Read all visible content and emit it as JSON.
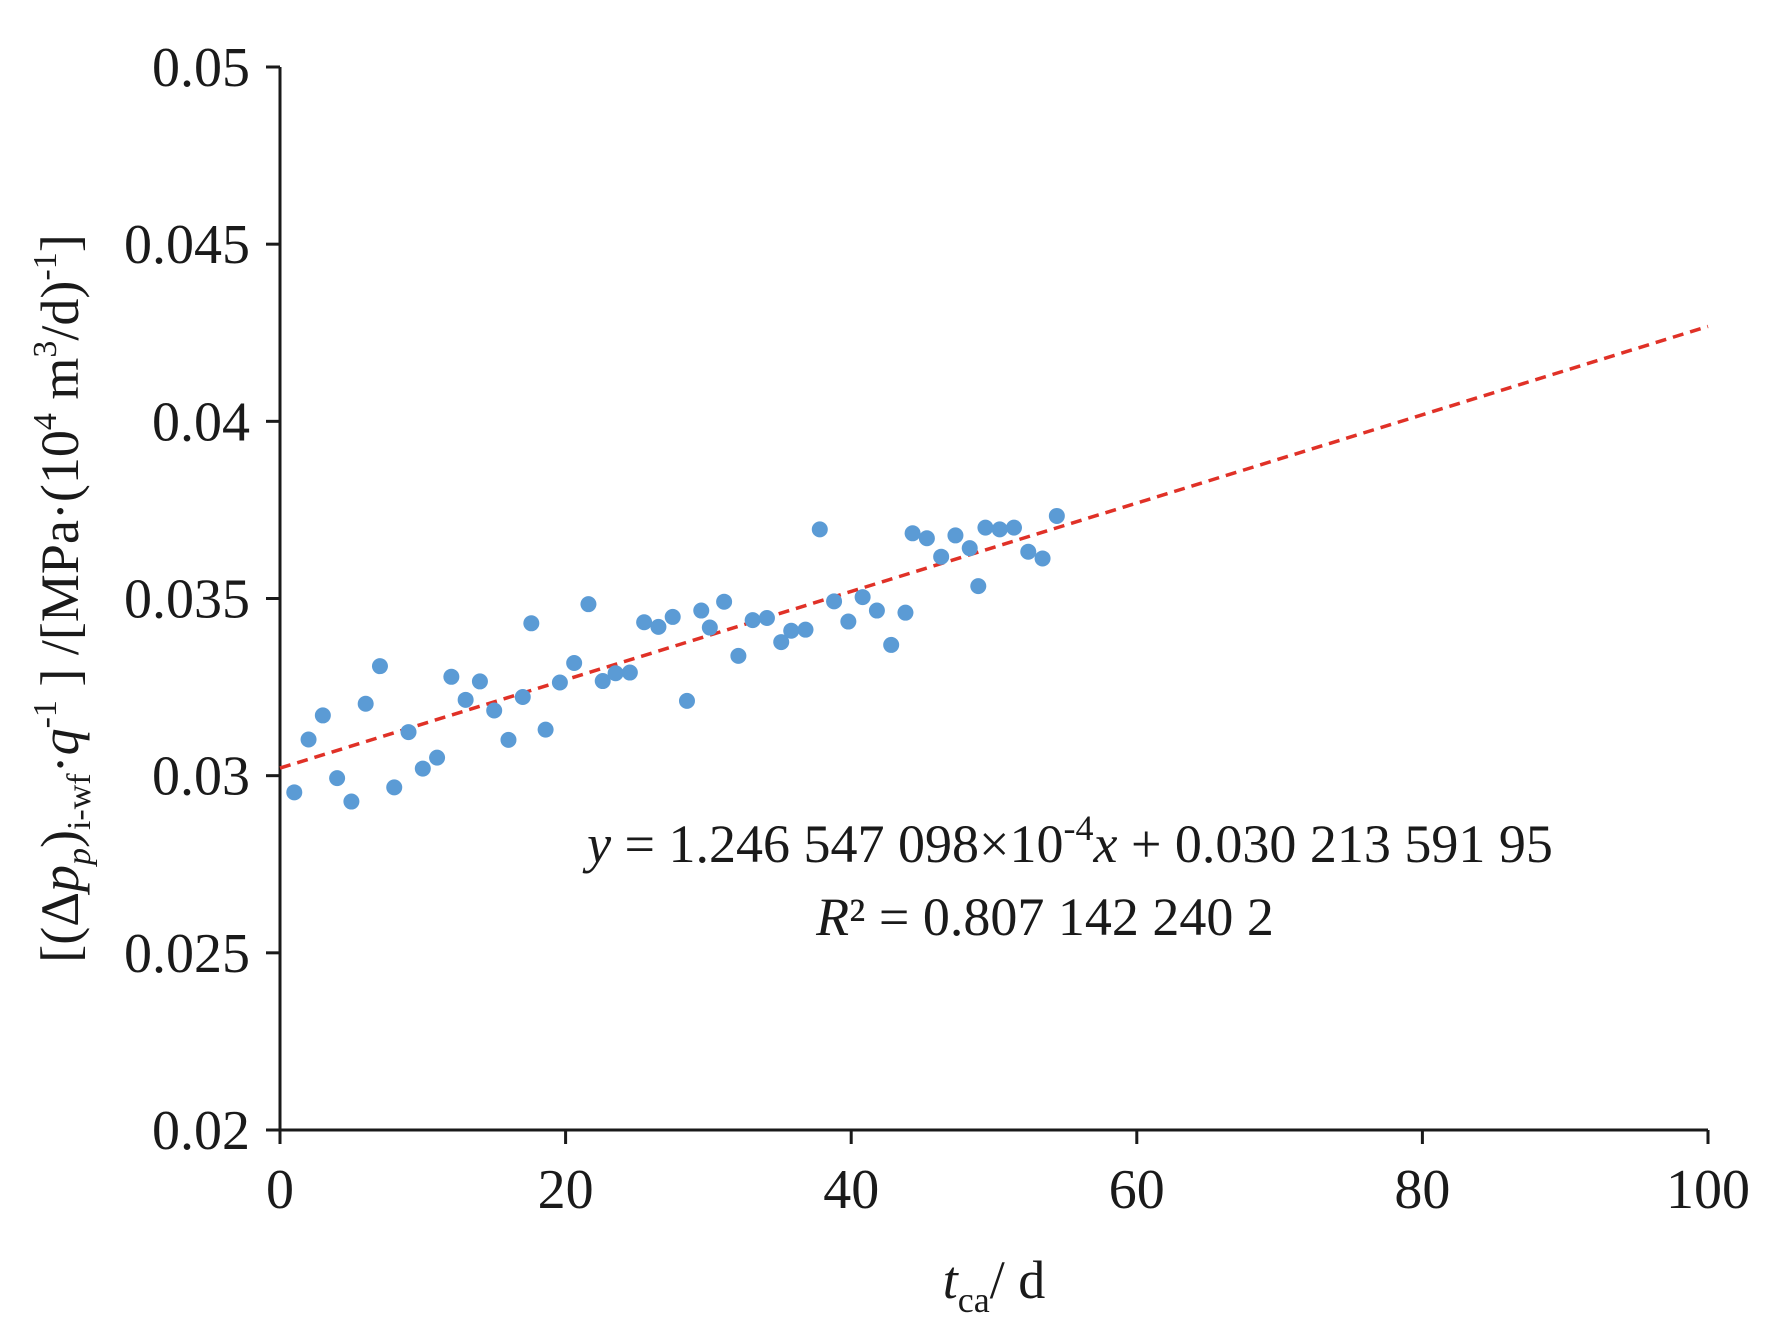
{
  "chart_data": {
    "type": "scatter",
    "series": [
      {
        "marker_color": "#5b9bd5",
        "x": [
          1,
          2,
          3,
          4,
          5,
          6,
          7,
          8,
          9,
          10,
          11,
          12,
          13,
          14,
          15,
          16,
          17,
          17.6,
          18.6,
          19.6,
          20.6,
          21.6,
          22.6,
          23.5,
          24.5,
          25.5,
          26.5,
          27.5,
          28.5,
          29.5,
          30.1,
          31.1,
          32.1,
          33.1,
          34.1,
          35.1,
          35.8,
          36.8,
          37.8,
          38.8,
          39.8,
          40.8,
          41.8,
          42.8,
          43.8,
          44.3,
          45.3,
          46.3,
          47.3,
          48.3,
          48.9,
          49.4,
          50.4,
          51.4,
          52.4,
          53.4,
          54.4
        ],
        "y": [
          0.02953,
          0.03102,
          0.0317,
          0.02993,
          0.02927,
          0.03203,
          0.03309,
          0.02967,
          0.03123,
          0.0302,
          0.03051,
          0.03279,
          0.03214,
          0.03266,
          0.03184,
          0.03101,
          0.03222,
          0.0343,
          0.0313,
          0.03263,
          0.03318,
          0.03484,
          0.03267,
          0.03289,
          0.03291,
          0.03433,
          0.0342,
          0.03448,
          0.03211,
          0.03466,
          0.03418,
          0.03491,
          0.03338,
          0.03439,
          0.03445,
          0.03377,
          0.03409,
          0.03412,
          0.03695,
          0.03492,
          0.03435,
          0.03504,
          0.03466,
          0.03369,
          0.0346,
          0.03684,
          0.0367,
          0.03618,
          0.03678,
          0.03642,
          0.03535,
          0.037,
          0.03695,
          0.037,
          0.03632,
          0.03613,
          0.03733
        ]
      }
    ],
    "trendline": {
      "slope": 0.0001246547098,
      "intercept": 0.03021359195,
      "color": "#e03127",
      "style": "dashed"
    },
    "equation_text": {
      "y_var": "y",
      "equals": " = 1.246 547 098×10",
      "exponent": "-4",
      "x_var": "x",
      "tail": " + 0.030 213 591 95",
      "r_var": "R",
      "r_rest": "² = 0.807 142 240 2"
    },
    "xlabel": {
      "var": "t",
      "sub": "ca",
      "unit": "/ d"
    },
    "ylabel": {
      "p1": "[(Δ",
      "p2": "p",
      "p2sub": "p",
      "p3": ")",
      "p3sub": "i-wf",
      "p4": "·",
      "p5": "q",
      "p5sup": "-1",
      "p6": " ] /[MPa·(10",
      "p6sup": "4",
      "p7": " m",
      "p7sup": "3",
      "p8": "/d)",
      "p8sup": "-1",
      "p9": "]"
    },
    "xlim": [
      0,
      100
    ],
    "ylim": [
      0.02,
      0.05
    ],
    "xticks": [
      "0",
      "20",
      "40",
      "60",
      "80",
      "100"
    ],
    "yticks": [
      "0.02",
      "0.025",
      "0.03",
      "0.035",
      "0.04",
      "0.045",
      "0.05"
    ],
    "grid": false,
    "legend": "none"
  }
}
